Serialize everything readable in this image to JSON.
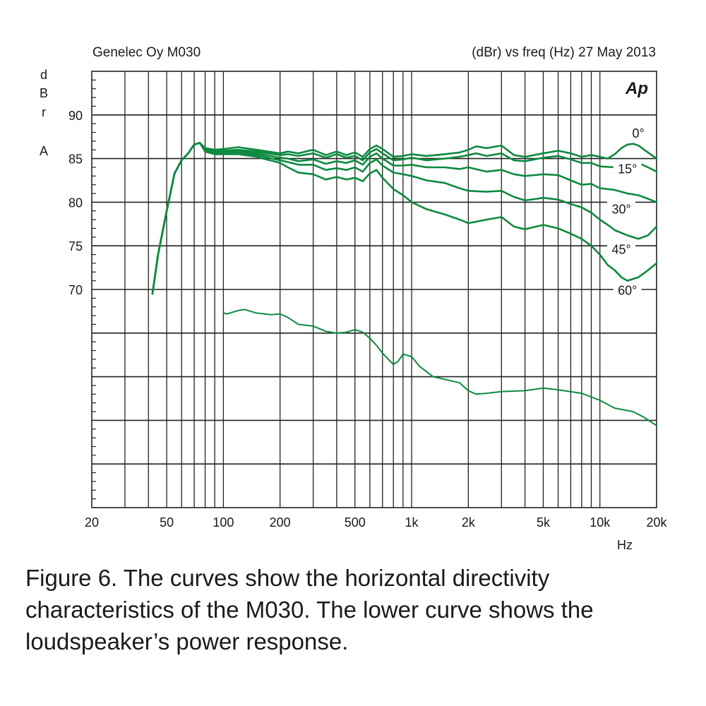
{
  "header": {
    "left": "Genelec Oy M030",
    "right": "(dBr) vs freq (Hz) 27 May 2013"
  },
  "logo_text": "Ap",
  "caption": "Figure 6. The curves show the horizontal directivity characteristics of the M030. The lower curve shows the loudspeaker’s power response.",
  "chart_data": {
    "type": "line",
    "xscale": "log",
    "xlim": [
      20,
      20000
    ],
    "ylim": [
      45,
      95
    ],
    "xunit": "Hz",
    "ylabel_letters": [
      "d",
      "B",
      "r",
      "A"
    ],
    "x_ticks": [
      {
        "v": 20,
        "label": "20"
      },
      {
        "v": 50,
        "label": "50"
      },
      {
        "v": 100,
        "label": "100"
      },
      {
        "v": 200,
        "label": "200"
      },
      {
        "v": 500,
        "label": "500"
      },
      {
        "v": 1000,
        "label": "1k"
      },
      {
        "v": 2000,
        "label": "2k"
      },
      {
        "v": 5000,
        "label": "5k"
      },
      {
        "v": 10000,
        "label": "10k"
      },
      {
        "v": 20000,
        "label": "20k"
      }
    ],
    "y_ticks": [
      {
        "v": 90,
        "label": "90"
      },
      {
        "v": 85,
        "label": "85"
      },
      {
        "v": 80,
        "label": "80"
      },
      {
        "v": 75,
        "label": "75"
      },
      {
        "v": 70,
        "label": "70"
      }
    ],
    "grid": true,
    "color": "#0d8a3f",
    "series": [
      {
        "name": "0°",
        "label_at": [
          16000,
          87.4
        ],
        "points": [
          [
            42,
            69.5
          ],
          [
            45,
            74
          ],
          [
            50,
            79
          ],
          [
            55,
            83.3
          ],
          [
            60,
            84.8
          ],
          [
            65,
            85.6
          ],
          [
            70,
            86.6
          ],
          [
            75,
            86.8
          ],
          [
            80,
            86.2
          ],
          [
            90,
            86.0
          ],
          [
            100,
            86.1
          ],
          [
            120,
            86.3
          ],
          [
            150,
            86.0
          ],
          [
            200,
            85.6
          ],
          [
            220,
            85.8
          ],
          [
            250,
            85.6
          ],
          [
            300,
            86.0
          ],
          [
            350,
            85.4
          ],
          [
            400,
            85.8
          ],
          [
            450,
            85.4
          ],
          [
            500,
            85.7
          ],
          [
            550,
            85.2
          ],
          [
            600,
            86.1
          ],
          [
            650,
            86.5
          ],
          [
            700,
            86.1
          ],
          [
            800,
            85.2
          ],
          [
            900,
            85.3
          ],
          [
            1000,
            85.5
          ],
          [
            1200,
            85.3
          ],
          [
            1500,
            85.5
          ],
          [
            1800,
            85.7
          ],
          [
            2000,
            86.0
          ],
          [
            2200,
            86.4
          ],
          [
            2500,
            86.2
          ],
          [
            3000,
            86.5
          ],
          [
            3500,
            85.4
          ],
          [
            4000,
            85.2
          ],
          [
            5000,
            85.6
          ],
          [
            6000,
            85.9
          ],
          [
            7000,
            85.6
          ],
          [
            8000,
            85.2
          ],
          [
            9000,
            85.4
          ],
          [
            10000,
            85.2
          ],
          [
            11000,
            85.0
          ],
          [
            12000,
            85.5
          ],
          [
            13000,
            86.2
          ],
          [
            14000,
            86.6
          ],
          [
            15000,
            86.7
          ],
          [
            16000,
            86.5
          ],
          [
            18000,
            85.7
          ],
          [
            20000,
            85.0
          ]
        ]
      },
      {
        "name": "15°",
        "label_at": [
          14000,
          83.3
        ],
        "points": [
          [
            42,
            69.5
          ],
          [
            45,
            74
          ],
          [
            50,
            79
          ],
          [
            55,
            83.3
          ],
          [
            60,
            84.8
          ],
          [
            65,
            85.6
          ],
          [
            70,
            86.6
          ],
          [
            75,
            86.8
          ],
          [
            80,
            86.1
          ],
          [
            90,
            85.8
          ],
          [
            100,
            85.9
          ],
          [
            120,
            86.0
          ],
          [
            150,
            85.8
          ],
          [
            200,
            85.4
          ],
          [
            220,
            85.5
          ],
          [
            250,
            85.3
          ],
          [
            300,
            85.6
          ],
          [
            350,
            85.1
          ],
          [
            400,
            85.5
          ],
          [
            450,
            85.1
          ],
          [
            500,
            85.3
          ],
          [
            550,
            84.8
          ],
          [
            600,
            85.7
          ],
          [
            650,
            86.1
          ],
          [
            700,
            85.6
          ],
          [
            800,
            84.8
          ],
          [
            900,
            84.9
          ],
          [
            1000,
            85.1
          ],
          [
            1200,
            84.8
          ],
          [
            1500,
            85.0
          ],
          [
            1800,
            85.2
          ],
          [
            2000,
            85.4
          ],
          [
            2200,
            85.6
          ],
          [
            2500,
            85.3
          ],
          [
            3000,
            85.6
          ],
          [
            3500,
            84.8
          ],
          [
            4000,
            84.7
          ],
          [
            5000,
            85.1
          ],
          [
            6000,
            85.3
          ],
          [
            7000,
            84.9
          ],
          [
            8000,
            84.5
          ],
          [
            9000,
            84.5
          ],
          [
            10000,
            84.1
          ],
          [
            12000,
            84.0
          ],
          [
            14000,
            84.3
          ],
          [
            16000,
            84.5
          ],
          [
            18000,
            84.0
          ],
          [
            20000,
            83.5
          ]
        ]
      },
      {
        "name": "30°",
        "label_at": [
          13000,
          78.7
        ],
        "points": [
          [
            42,
            69.5
          ],
          [
            45,
            74
          ],
          [
            50,
            79
          ],
          [
            55,
            83.3
          ],
          [
            60,
            84.8
          ],
          [
            65,
            85.6
          ],
          [
            70,
            86.6
          ],
          [
            75,
            86.8
          ],
          [
            80,
            86.0
          ],
          [
            90,
            85.7
          ],
          [
            100,
            85.8
          ],
          [
            120,
            85.9
          ],
          [
            150,
            85.6
          ],
          [
            200,
            85.1
          ],
          [
            220,
            85.0
          ],
          [
            250,
            84.7
          ],
          [
            300,
            84.9
          ],
          [
            350,
            84.4
          ],
          [
            400,
            84.7
          ],
          [
            450,
            84.5
          ],
          [
            500,
            84.8
          ],
          [
            550,
            84.3
          ],
          [
            600,
            85.2
          ],
          [
            650,
            85.6
          ],
          [
            700,
            85.0
          ],
          [
            800,
            84.2
          ],
          [
            900,
            84.2
          ],
          [
            1000,
            84.3
          ],
          [
            1200,
            84.0
          ],
          [
            1500,
            84.0
          ],
          [
            1800,
            83.8
          ],
          [
            2000,
            84.0
          ],
          [
            2500,
            83.5
          ],
          [
            3000,
            83.7
          ],
          [
            3500,
            83.2
          ],
          [
            4000,
            83.0
          ],
          [
            5000,
            83.2
          ],
          [
            6000,
            83.1
          ],
          [
            7000,
            82.5
          ],
          [
            8000,
            82.0
          ],
          [
            9000,
            82.1
          ],
          [
            10000,
            81.6
          ],
          [
            12000,
            81.4
          ],
          [
            14000,
            81.0
          ],
          [
            16000,
            80.8
          ],
          [
            18000,
            80.4
          ],
          [
            20000,
            80.0
          ]
        ]
      },
      {
        "name": "45°",
        "label_at": [
          13000,
          74.1
        ],
        "points": [
          [
            42,
            69.5
          ],
          [
            45,
            74
          ],
          [
            50,
            79
          ],
          [
            55,
            83.3
          ],
          [
            60,
            84.8
          ],
          [
            65,
            85.6
          ],
          [
            70,
            86.6
          ],
          [
            75,
            86.8
          ],
          [
            80,
            85.9
          ],
          [
            90,
            85.6
          ],
          [
            100,
            85.6
          ],
          [
            120,
            85.7
          ],
          [
            150,
            85.4
          ],
          [
            200,
            84.8
          ],
          [
            220,
            84.6
          ],
          [
            250,
            84.3
          ],
          [
            300,
            84.3
          ],
          [
            350,
            83.7
          ],
          [
            400,
            83.9
          ],
          [
            450,
            83.7
          ],
          [
            500,
            84.0
          ],
          [
            550,
            83.5
          ],
          [
            600,
            84.5
          ],
          [
            650,
            84.9
          ],
          [
            700,
            84.2
          ],
          [
            800,
            83.4
          ],
          [
            900,
            83.2
          ],
          [
            1000,
            83.0
          ],
          [
            1200,
            82.5
          ],
          [
            1500,
            82.2
          ],
          [
            1800,
            81.6
          ],
          [
            2000,
            81.3
          ],
          [
            2500,
            81.2
          ],
          [
            3000,
            81.3
          ],
          [
            3500,
            80.6
          ],
          [
            4000,
            80.2
          ],
          [
            5000,
            80.5
          ],
          [
            6000,
            80.3
          ],
          [
            7000,
            79.8
          ],
          [
            8000,
            79.4
          ],
          [
            9000,
            78.8
          ],
          [
            10000,
            78.0
          ],
          [
            11000,
            77.4
          ],
          [
            12000,
            76.8
          ],
          [
            14000,
            76.2
          ],
          [
            16000,
            75.8
          ],
          [
            18000,
            76.2
          ],
          [
            20000,
            77.2
          ]
        ]
      },
      {
        "name": "60°",
        "label_at": [
          14000,
          69.4
        ],
        "points": [
          [
            42,
            69.5
          ],
          [
            45,
            74
          ],
          [
            50,
            79
          ],
          [
            55,
            83.3
          ],
          [
            60,
            84.8
          ],
          [
            65,
            85.6
          ],
          [
            70,
            86.6
          ],
          [
            75,
            86.8
          ],
          [
            80,
            85.8
          ],
          [
            90,
            85.5
          ],
          [
            100,
            85.5
          ],
          [
            120,
            85.5
          ],
          [
            150,
            85.2
          ],
          [
            200,
            84.5
          ],
          [
            220,
            84.0
          ],
          [
            250,
            83.4
          ],
          [
            300,
            83.2
          ],
          [
            350,
            82.6
          ],
          [
            400,
            82.9
          ],
          [
            450,
            82.6
          ],
          [
            500,
            82.8
          ],
          [
            550,
            82.4
          ],
          [
            600,
            83.3
          ],
          [
            650,
            83.7
          ],
          [
            700,
            82.8
          ],
          [
            800,
            81.5
          ],
          [
            900,
            80.8
          ],
          [
            1000,
            80.0
          ],
          [
            1200,
            79.2
          ],
          [
            1500,
            78.6
          ],
          [
            1800,
            78.0
          ],
          [
            2000,
            77.6
          ],
          [
            2500,
            78.0
          ],
          [
            3000,
            78.3
          ],
          [
            3500,
            77.2
          ],
          [
            4000,
            76.9
          ],
          [
            5000,
            77.4
          ],
          [
            6000,
            77.0
          ],
          [
            7000,
            76.4
          ],
          [
            8000,
            75.8
          ],
          [
            9000,
            75.0
          ],
          [
            10000,
            74.0
          ],
          [
            11000,
            72.8
          ],
          [
            12000,
            72.2
          ],
          [
            13000,
            71.4
          ],
          [
            14000,
            71.0
          ],
          [
            16000,
            71.4
          ],
          [
            18000,
            72.2
          ],
          [
            20000,
            73.0
          ]
        ]
      },
      {
        "name": "",
        "width": 2,
        "points": [
          [
            100,
            67.3
          ],
          [
            105,
            67.2
          ],
          [
            120,
            67.6
          ],
          [
            130,
            67.7
          ],
          [
            150,
            67.3
          ],
          [
            180,
            67.1
          ],
          [
            200,
            67.2
          ],
          [
            220,
            66.8
          ],
          [
            250,
            66.0
          ],
          [
            300,
            65.8
          ],
          [
            350,
            65.2
          ],
          [
            400,
            65.0
          ],
          [
            450,
            65.1
          ],
          [
            500,
            65.4
          ],
          [
            550,
            65.1
          ],
          [
            600,
            64.4
          ],
          [
            650,
            63.6
          ],
          [
            700,
            62.7
          ],
          [
            800,
            61.4
          ],
          [
            850,
            61.8
          ],
          [
            900,
            62.6
          ],
          [
            1000,
            62.3
          ],
          [
            1100,
            61.2
          ],
          [
            1300,
            60.0
          ],
          [
            1500,
            59.7
          ],
          [
            1800,
            59.3
          ],
          [
            2000,
            58.4
          ],
          [
            2200,
            58.0
          ],
          [
            2500,
            58.1
          ],
          [
            3000,
            58.3
          ],
          [
            4000,
            58.4
          ],
          [
            5000,
            58.7
          ],
          [
            6000,
            58.5
          ],
          [
            8000,
            58.1
          ],
          [
            10000,
            57.3
          ],
          [
            12000,
            56.4
          ],
          [
            15000,
            56.0
          ],
          [
            17000,
            55.4
          ],
          [
            20000,
            54.4
          ]
        ]
      }
    ]
  }
}
